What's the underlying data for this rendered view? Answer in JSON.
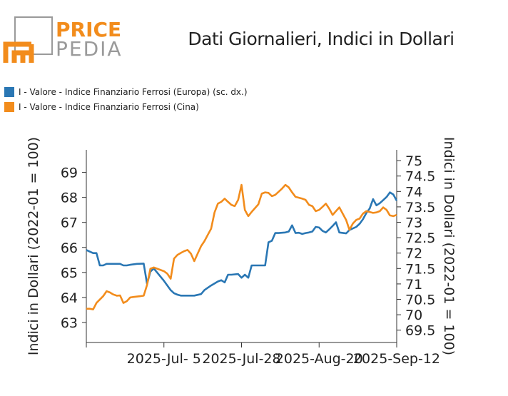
{
  "brand": {
    "name_top": "PRICE",
    "name_bottom": "PEDIA",
    "gray": "#9a9a9a",
    "orange": "#f28c1c"
  },
  "chart_data": {
    "type": "line",
    "title": "Dati Giornalieri, Indici in Dollari",
    "xlabel": "",
    "x_ticks": [
      "2025-Jul- 5",
      "2025-Jul-28",
      "2025-Aug-20",
      "2025-Sep-12"
    ],
    "x_range": [
      "2025-Jun-12",
      "2025-Sep-12"
    ],
    "left_axis": {
      "label": "Indici in Dollari (2022-01 = 100)",
      "range": [
        62.2,
        69.9
      ],
      "ticks": [
        63,
        64,
        65,
        66,
        67,
        68,
        69
      ]
    },
    "right_axis": {
      "label": "Indici in Dollari (2022-01 = 100)",
      "range": [
        69.1,
        75.35
      ],
      "ticks": [
        69.5,
        70,
        70.5,
        71,
        71.5,
        72,
        72.5,
        73,
        73.5,
        74,
        74.5,
        75
      ]
    },
    "grid": false,
    "legend_position": "top-left",
    "series": [
      {
        "name": "I - Valore - Indice Finanziario Ferrosi (Europa) (sc. dx.)",
        "color": "#2a77b4",
        "axis": "right",
        "points": [
          [
            "2025-06-12",
            72.1
          ],
          [
            "2025-06-13",
            72.05
          ],
          [
            "2025-06-14",
            72.0
          ],
          [
            "2025-06-15",
            72.0
          ],
          [
            "2025-06-16",
            71.6
          ],
          [
            "2025-06-17",
            71.6
          ],
          [
            "2025-06-18",
            71.65
          ],
          [
            "2025-06-20",
            71.65
          ],
          [
            "2025-06-22",
            71.65
          ],
          [
            "2025-06-23",
            71.6
          ],
          [
            "2025-06-24",
            71.6
          ],
          [
            "2025-06-25",
            71.62
          ],
          [
            "2025-06-27",
            71.65
          ],
          [
            "2025-06-29",
            71.66
          ],
          [
            "2025-06-30",
            71.0
          ],
          [
            "2025-07-01",
            71.4
          ],
          [
            "2025-07-02",
            71.5
          ],
          [
            "2025-07-05",
            71.1
          ],
          [
            "2025-07-07",
            70.8
          ],
          [
            "2025-07-08",
            70.7
          ],
          [
            "2025-07-09",
            70.65
          ],
          [
            "2025-07-10",
            70.62
          ],
          [
            "2025-07-13",
            70.62
          ],
          [
            "2025-07-14",
            70.62
          ],
          [
            "2025-07-16",
            70.67
          ],
          [
            "2025-07-17",
            70.8
          ],
          [
            "2025-07-19",
            70.95
          ],
          [
            "2025-07-21",
            71.08
          ],
          [
            "2025-07-22",
            71.12
          ],
          [
            "2025-07-23",
            71.05
          ],
          [
            "2025-07-24",
            71.3
          ],
          [
            "2025-07-25",
            71.3
          ],
          [
            "2025-07-27",
            71.32
          ],
          [
            "2025-07-28",
            71.2
          ],
          [
            "2025-07-29",
            71.3
          ],
          [
            "2025-07-30",
            71.2
          ],
          [
            "2025-07-31",
            71.6
          ],
          [
            "2025-08-02",
            71.6
          ],
          [
            "2025-08-04",
            71.6
          ],
          [
            "2025-08-05",
            72.35
          ],
          [
            "2025-08-06",
            72.4
          ],
          [
            "2025-08-07",
            72.65
          ],
          [
            "2025-08-08",
            72.65
          ],
          [
            "2025-08-10",
            72.67
          ],
          [
            "2025-08-11",
            72.7
          ],
          [
            "2025-08-12",
            72.9
          ],
          [
            "2025-08-13",
            72.65
          ],
          [
            "2025-08-14",
            72.66
          ],
          [
            "2025-08-15",
            72.62
          ],
          [
            "2025-08-16",
            72.65
          ],
          [
            "2025-08-17",
            72.67
          ],
          [
            "2025-08-18",
            72.7
          ],
          [
            "2025-08-19",
            72.85
          ],
          [
            "2025-08-20",
            72.83
          ],
          [
            "2025-08-21",
            72.72
          ],
          [
            "2025-08-22",
            72.67
          ],
          [
            "2025-08-23",
            72.77
          ],
          [
            "2025-08-24",
            72.88
          ],
          [
            "2025-08-25",
            73.0
          ],
          [
            "2025-08-26",
            72.67
          ],
          [
            "2025-08-28",
            72.64
          ],
          [
            "2025-08-29",
            72.75
          ],
          [
            "2025-08-31",
            72.85
          ],
          [
            "2025-09-01",
            72.95
          ],
          [
            "2025-09-02",
            73.1
          ],
          [
            "2025-09-03",
            73.3
          ],
          [
            "2025-09-04",
            73.45
          ],
          [
            "2025-09-05",
            73.75
          ],
          [
            "2025-09-06",
            73.55
          ],
          [
            "2025-09-07",
            73.62
          ],
          [
            "2025-09-08",
            73.72
          ],
          [
            "2025-09-09",
            73.82
          ],
          [
            "2025-09-10",
            73.97
          ],
          [
            "2025-09-11",
            73.9
          ],
          [
            "2025-09-12",
            73.7
          ]
        ]
      },
      {
        "name": "I - Valore - Indice Finanziario Ferrosi (Cina)",
        "color": "#f28c1c",
        "axis": "left",
        "points": [
          [
            "2025-06-12",
            63.55
          ],
          [
            "2025-06-13",
            63.55
          ],
          [
            "2025-06-14",
            63.52
          ],
          [
            "2025-06-15",
            63.78
          ],
          [
            "2025-06-17",
            64.05
          ],
          [
            "2025-06-18",
            64.25
          ],
          [
            "2025-06-19",
            64.2
          ],
          [
            "2025-06-20",
            64.12
          ],
          [
            "2025-06-21",
            64.07
          ],
          [
            "2025-06-22",
            64.08
          ],
          [
            "2025-06-23",
            63.78
          ],
          [
            "2025-06-24",
            63.85
          ],
          [
            "2025-06-25",
            64.0
          ],
          [
            "2025-06-26",
            64.02
          ],
          [
            "2025-06-28",
            64.05
          ],
          [
            "2025-06-29",
            64.07
          ],
          [
            "2025-06-30",
            64.5
          ],
          [
            "2025-07-01",
            65.15
          ],
          [
            "2025-07-02",
            65.2
          ],
          [
            "2025-07-05",
            65.05
          ],
          [
            "2025-07-06",
            64.95
          ],
          [
            "2025-07-07",
            64.75
          ],
          [
            "2025-07-08",
            65.55
          ],
          [
            "2025-07-09",
            65.7
          ],
          [
            "2025-07-10",
            65.78
          ],
          [
            "2025-07-11",
            65.85
          ],
          [
            "2025-07-12",
            65.9
          ],
          [
            "2025-07-13",
            65.75
          ],
          [
            "2025-07-14",
            65.45
          ],
          [
            "2025-07-15",
            65.75
          ],
          [
            "2025-07-16",
            66.05
          ],
          [
            "2025-07-17",
            66.25
          ],
          [
            "2025-07-18",
            66.5
          ],
          [
            "2025-07-19",
            66.75
          ],
          [
            "2025-07-20",
            67.4
          ],
          [
            "2025-07-21",
            67.75
          ],
          [
            "2025-07-22",
            67.82
          ],
          [
            "2025-07-23",
            67.95
          ],
          [
            "2025-07-24",
            67.82
          ],
          [
            "2025-07-25",
            67.7
          ],
          [
            "2025-07-26",
            67.65
          ],
          [
            "2025-07-27",
            67.9
          ],
          [
            "2025-07-28",
            68.5
          ],
          [
            "2025-07-29",
            67.5
          ],
          [
            "2025-07-30",
            67.25
          ],
          [
            "2025-07-31",
            67.42
          ],
          [
            "2025-08-02",
            67.72
          ],
          [
            "2025-08-03",
            68.15
          ],
          [
            "2025-08-04",
            68.2
          ],
          [
            "2025-08-05",
            68.18
          ],
          [
            "2025-08-06",
            68.05
          ],
          [
            "2025-08-07",
            68.1
          ],
          [
            "2025-08-09",
            68.35
          ],
          [
            "2025-08-10",
            68.5
          ],
          [
            "2025-08-11",
            68.4
          ],
          [
            "2025-08-12",
            68.2
          ],
          [
            "2025-08-13",
            68.02
          ],
          [
            "2025-08-15",
            67.95
          ],
          [
            "2025-08-16",
            67.9
          ],
          [
            "2025-08-17",
            67.7
          ],
          [
            "2025-08-18",
            67.65
          ],
          [
            "2025-08-19",
            67.45
          ],
          [
            "2025-08-20",
            67.5
          ],
          [
            "2025-08-21",
            67.62
          ],
          [
            "2025-08-22",
            67.75
          ],
          [
            "2025-08-23",
            67.55
          ],
          [
            "2025-08-24",
            67.3
          ],
          [
            "2025-08-25",
            67.45
          ],
          [
            "2025-08-26",
            67.6
          ],
          [
            "2025-08-27",
            67.35
          ],
          [
            "2025-08-28",
            67.1
          ],
          [
            "2025-08-29",
            66.7
          ],
          [
            "2025-08-30",
            66.95
          ],
          [
            "2025-08-31",
            67.1
          ],
          [
            "2025-09-01",
            67.15
          ],
          [
            "2025-09-02",
            67.35
          ],
          [
            "2025-09-03",
            67.45
          ],
          [
            "2025-09-05",
            67.38
          ],
          [
            "2025-09-06",
            67.4
          ],
          [
            "2025-09-07",
            67.45
          ],
          [
            "2025-09-08",
            67.6
          ],
          [
            "2025-09-09",
            67.5
          ],
          [
            "2025-09-10",
            67.28
          ],
          [
            "2025-09-11",
            67.25
          ],
          [
            "2025-09-12",
            67.3
          ]
        ]
      }
    ]
  }
}
